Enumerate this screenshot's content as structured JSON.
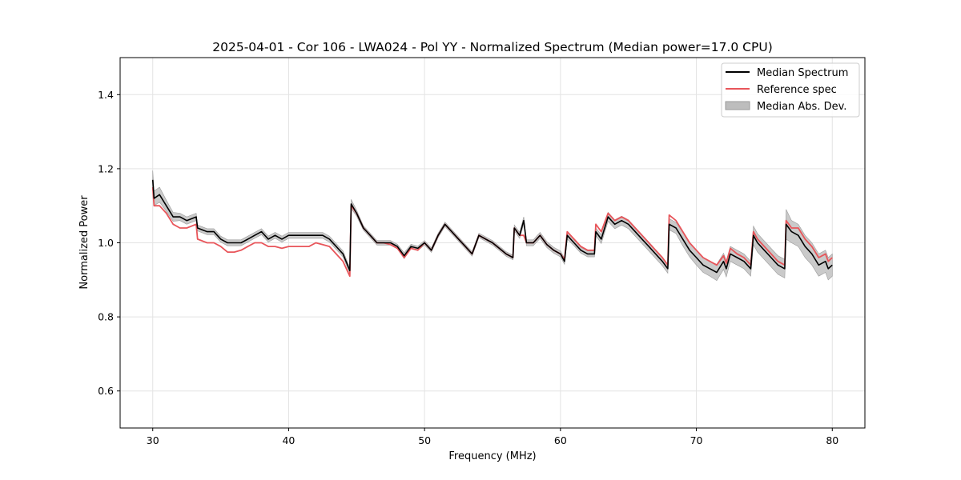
{
  "chart_data": {
    "type": "line",
    "title": "2025-04-01 - Cor 106 - LWA024 - Pol YY - Normalized Spectrum (Median power=17.0 CPU)",
    "xlabel": "Frequency (MHz)",
    "ylabel": "Normalized Power",
    "xlim": [
      27.6,
      82.4
    ],
    "ylim": [
      0.5,
      1.5
    ],
    "xticks": [
      30,
      40,
      50,
      60,
      70,
      80
    ],
    "yticks": [
      0.6,
      0.8,
      1.0,
      1.2,
      1.4
    ],
    "xtick_labels": [
      "30",
      "40",
      "50",
      "60",
      "70",
      "80"
    ],
    "ytick_labels": [
      "0.6",
      "0.8",
      "1.0",
      "1.2",
      "1.4"
    ],
    "grid": true,
    "legend_position": "top-right",
    "legend": [
      "Median Spectrum",
      "Reference spec",
      "Median Abs. Dev."
    ],
    "colors": {
      "median": "#000000",
      "reference": "#e8555a",
      "mad_fill": "#bdbdbd",
      "mad_edge": "#9a9a9a",
      "grid": "#e3e3e3"
    },
    "series": [
      {
        "name": "Median Spectrum",
        "x": [
          30.0,
          30.1,
          30.5,
          31.0,
          31.5,
          32.0,
          32.5,
          33.2,
          33.3,
          34.0,
          34.5,
          35.0,
          35.5,
          36.0,
          36.5,
          37.0,
          37.5,
          38.0,
          38.5,
          39.0,
          39.5,
          40.0,
          40.5,
          41.0,
          41.5,
          42.0,
          42.5,
          43.0,
          43.5,
          44.0,
          44.5,
          44.6,
          45.0,
          45.5,
          46.0,
          46.5,
          47.0,
          47.5,
          48.0,
          48.5,
          49.0,
          49.5,
          50.0,
          50.5,
          51.0,
          51.5,
          52.0,
          52.5,
          53.0,
          53.5,
          54.0,
          54.5,
          55.0,
          55.5,
          56.0,
          56.5,
          56.6,
          57.0,
          57.3,
          57.5,
          58.0,
          58.5,
          59.0,
          59.5,
          60.0,
          60.3,
          60.5,
          61.0,
          61.5,
          62.0,
          62.5,
          62.6,
          63.0,
          63.5,
          64.0,
          64.5,
          65.0,
          65.5,
          66.0,
          66.5,
          67.0,
          67.5,
          67.9,
          68.0,
          68.5,
          69.0,
          69.5,
          70.0,
          70.5,
          71.0,
          71.5,
          72.0,
          72.2,
          72.5,
          73.0,
          73.5,
          74.0,
          74.2,
          74.5,
          75.0,
          75.5,
          76.0,
          76.5,
          76.6,
          77.0,
          77.5,
          78.0,
          78.5,
          79.0,
          79.5,
          79.7,
          80.0
        ],
        "y": [
          1.17,
          1.12,
          1.13,
          1.1,
          1.07,
          1.07,
          1.06,
          1.07,
          1.04,
          1.03,
          1.03,
          1.01,
          1.0,
          1.0,
          1.0,
          1.01,
          1.02,
          1.03,
          1.01,
          1.02,
          1.01,
          1.02,
          1.02,
          1.02,
          1.02,
          1.02,
          1.02,
          1.01,
          0.99,
          0.97,
          0.925,
          1.105,
          1.08,
          1.04,
          1.02,
          1.0,
          1.0,
          1.0,
          0.99,
          0.965,
          0.99,
          0.985,
          1.0,
          0.98,
          1.02,
          1.05,
          1.03,
          1.01,
          0.99,
          0.97,
          1.02,
          1.01,
          1.0,
          0.985,
          0.97,
          0.96,
          1.04,
          1.02,
          1.06,
          1.0,
          1.0,
          1.02,
          0.995,
          0.98,
          0.97,
          0.95,
          1.02,
          1.0,
          0.98,
          0.97,
          0.97,
          1.03,
          1.01,
          1.07,
          1.05,
          1.06,
          1.05,
          1.03,
          1.01,
          0.99,
          0.97,
          0.95,
          0.93,
          1.05,
          1.04,
          1.01,
          0.98,
          0.96,
          0.94,
          0.93,
          0.92,
          0.95,
          0.93,
          0.97,
          0.96,
          0.95,
          0.93,
          1.02,
          1.0,
          0.98,
          0.96,
          0.94,
          0.93,
          1.05,
          1.03,
          1.02,
          0.99,
          0.97,
          0.94,
          0.95,
          0.93,
          0.94
        ]
      },
      {
        "name": "Reference spec",
        "x": [
          30.0,
          30.1,
          30.5,
          31.0,
          31.5,
          32.0,
          32.5,
          33.2,
          33.3,
          34.0,
          34.5,
          35.0,
          35.5,
          36.0,
          36.5,
          37.0,
          37.5,
          38.0,
          38.5,
          39.0,
          39.5,
          40.0,
          40.5,
          41.0,
          41.5,
          42.0,
          42.5,
          43.0,
          43.5,
          44.0,
          44.5,
          44.6,
          45.0,
          45.5,
          46.0,
          46.5,
          47.0,
          47.5,
          48.0,
          48.5,
          49.0,
          49.5,
          50.0,
          50.5,
          51.0,
          51.5,
          52.0,
          52.5,
          53.0,
          53.5,
          54.0,
          54.5,
          55.0,
          55.5,
          56.0,
          56.5,
          56.6,
          57.0,
          57.3,
          57.5,
          58.0,
          58.5,
          59.0,
          59.5,
          60.0,
          60.3,
          60.5,
          61.0,
          61.5,
          62.0,
          62.5,
          62.6,
          63.0,
          63.5,
          64.0,
          64.5,
          65.0,
          65.5,
          66.0,
          66.5,
          67.0,
          67.5,
          67.9,
          68.0,
          68.5,
          69.0,
          69.5,
          70.0,
          70.5,
          71.0,
          71.5,
          72.0,
          72.2,
          72.5,
          73.0,
          73.5,
          74.0,
          74.2,
          74.5,
          75.0,
          75.5,
          76.0,
          76.5,
          76.6,
          77.0,
          77.5,
          78.0,
          78.5,
          79.0,
          79.5,
          79.7,
          80.0
        ],
        "y": [
          1.15,
          1.1,
          1.1,
          1.08,
          1.05,
          1.04,
          1.04,
          1.05,
          1.01,
          1.0,
          1.0,
          0.99,
          0.975,
          0.975,
          0.98,
          0.99,
          1.0,
          1.0,
          0.99,
          0.99,
          0.985,
          0.99,
          0.99,
          0.99,
          0.99,
          1.0,
          0.995,
          0.99,
          0.97,
          0.95,
          0.91,
          1.1,
          1.08,
          1.04,
          1.02,
          1.0,
          1.0,
          0.995,
          0.985,
          0.96,
          0.985,
          0.98,
          1.0,
          0.98,
          1.02,
          1.05,
          1.03,
          1.01,
          0.99,
          0.97,
          1.02,
          1.01,
          1.0,
          0.985,
          0.97,
          0.96,
          1.04,
          1.02,
          1.02,
          1.0,
          1.0,
          1.02,
          0.995,
          0.98,
          0.97,
          0.955,
          1.03,
          1.01,
          0.99,
          0.98,
          0.98,
          1.05,
          1.03,
          1.08,
          1.06,
          1.07,
          1.06,
          1.04,
          1.02,
          1.0,
          0.98,
          0.96,
          0.94,
          1.075,
          1.06,
          1.03,
          1.0,
          0.98,
          0.96,
          0.95,
          0.94,
          0.965,
          0.945,
          0.985,
          0.97,
          0.96,
          0.94,
          1.03,
          1.01,
          0.99,
          0.97,
          0.95,
          0.94,
          1.06,
          1.04,
          1.04,
          1.01,
          0.99,
          0.96,
          0.97,
          0.95,
          0.96
        ]
      },
      {
        "name": "Median Abs. Dev.",
        "type": "band",
        "x": [
          30.0,
          30.1,
          30.5,
          31.0,
          31.5,
          32.0,
          32.5,
          33.2,
          33.3,
          34.0,
          34.5,
          35.0,
          35.5,
          36.0,
          36.5,
          37.0,
          37.5,
          38.0,
          38.5,
          39.0,
          39.5,
          40.0,
          40.5,
          41.0,
          41.5,
          42.0,
          42.5,
          43.0,
          43.5,
          44.0,
          44.5,
          44.6,
          45.0,
          45.5,
          46.0,
          46.5,
          47.0,
          47.5,
          48.0,
          48.5,
          49.0,
          49.5,
          50.0,
          50.5,
          51.0,
          51.5,
          52.0,
          52.5,
          53.0,
          53.5,
          54.0,
          54.5,
          55.0,
          55.5,
          56.0,
          56.5,
          56.6,
          57.0,
          57.3,
          57.5,
          58.0,
          58.5,
          59.0,
          59.5,
          60.0,
          60.3,
          60.5,
          61.0,
          61.5,
          62.0,
          62.5,
          62.6,
          63.0,
          63.5,
          64.0,
          64.5,
          65.0,
          65.5,
          66.0,
          66.5,
          67.0,
          67.5,
          67.9,
          68.0,
          68.5,
          69.0,
          69.5,
          70.0,
          70.5,
          71.0,
          71.5,
          72.0,
          72.2,
          72.5,
          73.0,
          73.5,
          74.0,
          74.2,
          74.5,
          75.0,
          75.5,
          76.0,
          76.5,
          76.6,
          77.0,
          77.5,
          78.0,
          78.5,
          79.0,
          79.5,
          79.7,
          80.0
        ],
        "dev": [
          0.025,
          0.02,
          0.02,
          0.015,
          0.012,
          0.01,
          0.01,
          0.01,
          0.008,
          0.008,
          0.008,
          0.008,
          0.008,
          0.008,
          0.008,
          0.008,
          0.008,
          0.008,
          0.008,
          0.008,
          0.008,
          0.008,
          0.008,
          0.008,
          0.008,
          0.008,
          0.008,
          0.008,
          0.008,
          0.008,
          0.008,
          0.012,
          0.008,
          0.006,
          0.006,
          0.006,
          0.006,
          0.006,
          0.006,
          0.008,
          0.006,
          0.006,
          0.006,
          0.006,
          0.006,
          0.006,
          0.006,
          0.006,
          0.006,
          0.006,
          0.006,
          0.006,
          0.006,
          0.006,
          0.006,
          0.006,
          0.008,
          0.008,
          0.01,
          0.008,
          0.008,
          0.008,
          0.008,
          0.008,
          0.008,
          0.008,
          0.01,
          0.008,
          0.008,
          0.008,
          0.008,
          0.01,
          0.012,
          0.012,
          0.012,
          0.012,
          0.012,
          0.012,
          0.012,
          0.012,
          0.012,
          0.012,
          0.012,
          0.015,
          0.015,
          0.018,
          0.018,
          0.02,
          0.02,
          0.02,
          0.022,
          0.022,
          0.022,
          0.02,
          0.02,
          0.02,
          0.02,
          0.025,
          0.025,
          0.025,
          0.025,
          0.025,
          0.025,
          0.04,
          0.03,
          0.03,
          0.03,
          0.03,
          0.03,
          0.03,
          0.03,
          0.03
        ]
      }
    ]
  }
}
